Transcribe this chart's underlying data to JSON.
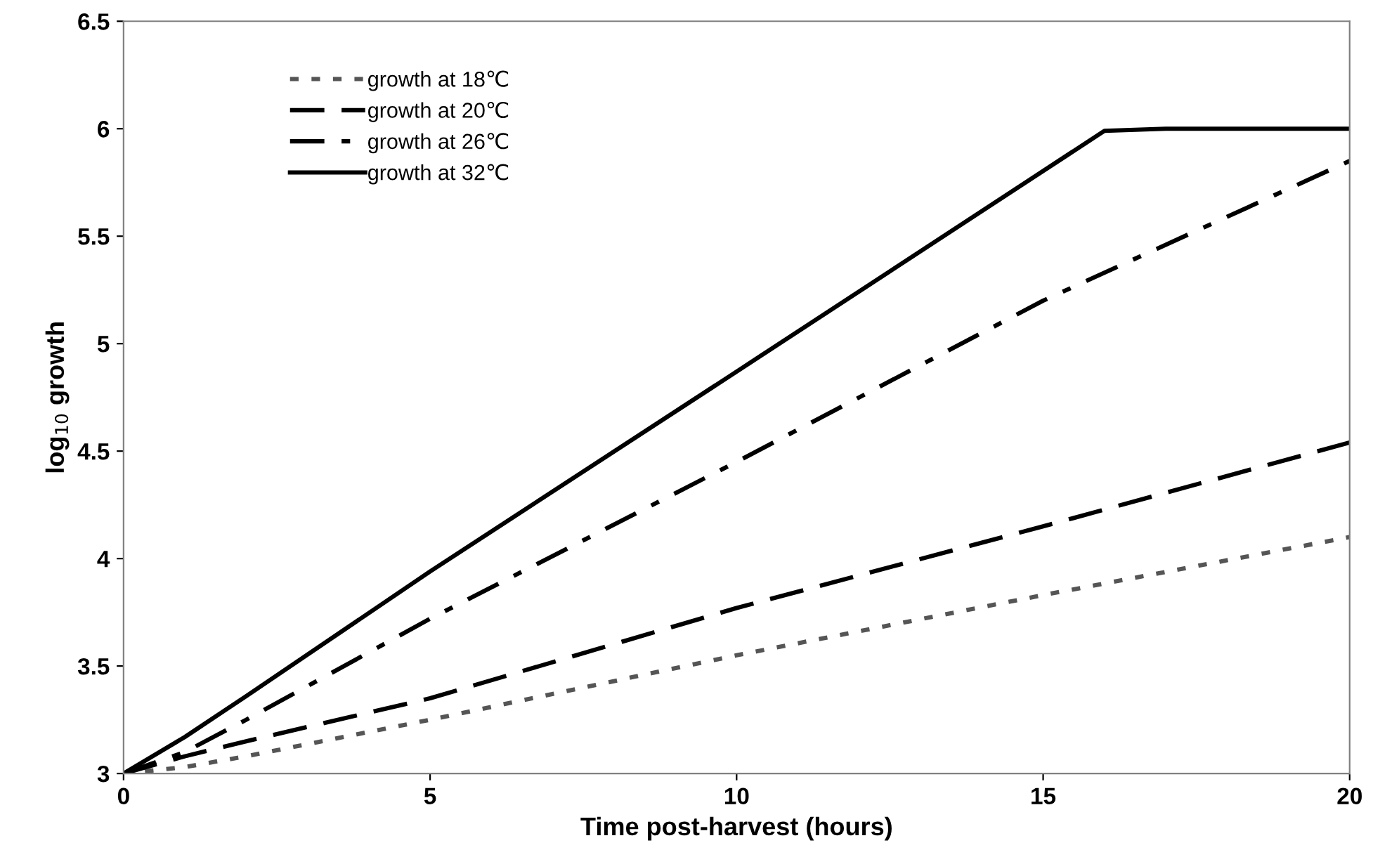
{
  "chart_data": {
    "type": "line",
    "xlabel": "Time post-harvest (hours)",
    "ylabel": "log$_{10}$ growth",
    "xlim": [
      0,
      20
    ],
    "xticks": [
      0,
      5,
      10,
      15,
      20
    ],
    "ylim": [
      3,
      6.5
    ],
    "yticks": [
      3,
      3.5,
      4,
      4.5,
      5,
      5.5,
      6,
      6.5
    ],
    "grid": false,
    "legend": "top left",
    "marker": "none",
    "series": [
      {
        "name": "growth at 18℃",
        "color": "#555555",
        "line_style": "dotted",
        "x": [
          0,
          1,
          2,
          5,
          10,
          15,
          20
        ],
        "values": [
          3,
          3.03,
          3.08,
          3.25,
          3.55,
          3.83,
          4.1
        ]
      },
      {
        "name": "growth at 20℃",
        "color": "#000000",
        "line_style": "dashed",
        "x": [
          0,
          1,
          2,
          5,
          10,
          15,
          20
        ],
        "values": [
          3,
          3.08,
          3.15,
          3.35,
          3.77,
          4.15,
          4.54
        ]
      },
      {
        "name": "growth at 26℃",
        "color": "#000000",
        "line_style": "dashdot",
        "x": [
          0,
          1,
          2,
          5,
          10,
          15,
          20
        ],
        "values": [
          3,
          3.1,
          3.25,
          3.72,
          4.45,
          5.2,
          5.85
        ]
      },
      {
        "name": "growth at 32℃",
        "color": "#000000",
        "line_style": "solid",
        "x": [
          0,
          1,
          2,
          5,
          10,
          16,
          17,
          20
        ],
        "values": [
          3,
          3.17,
          3.36,
          3.94,
          4.87,
          5.99,
          6,
          6
        ]
      }
    ]
  }
}
